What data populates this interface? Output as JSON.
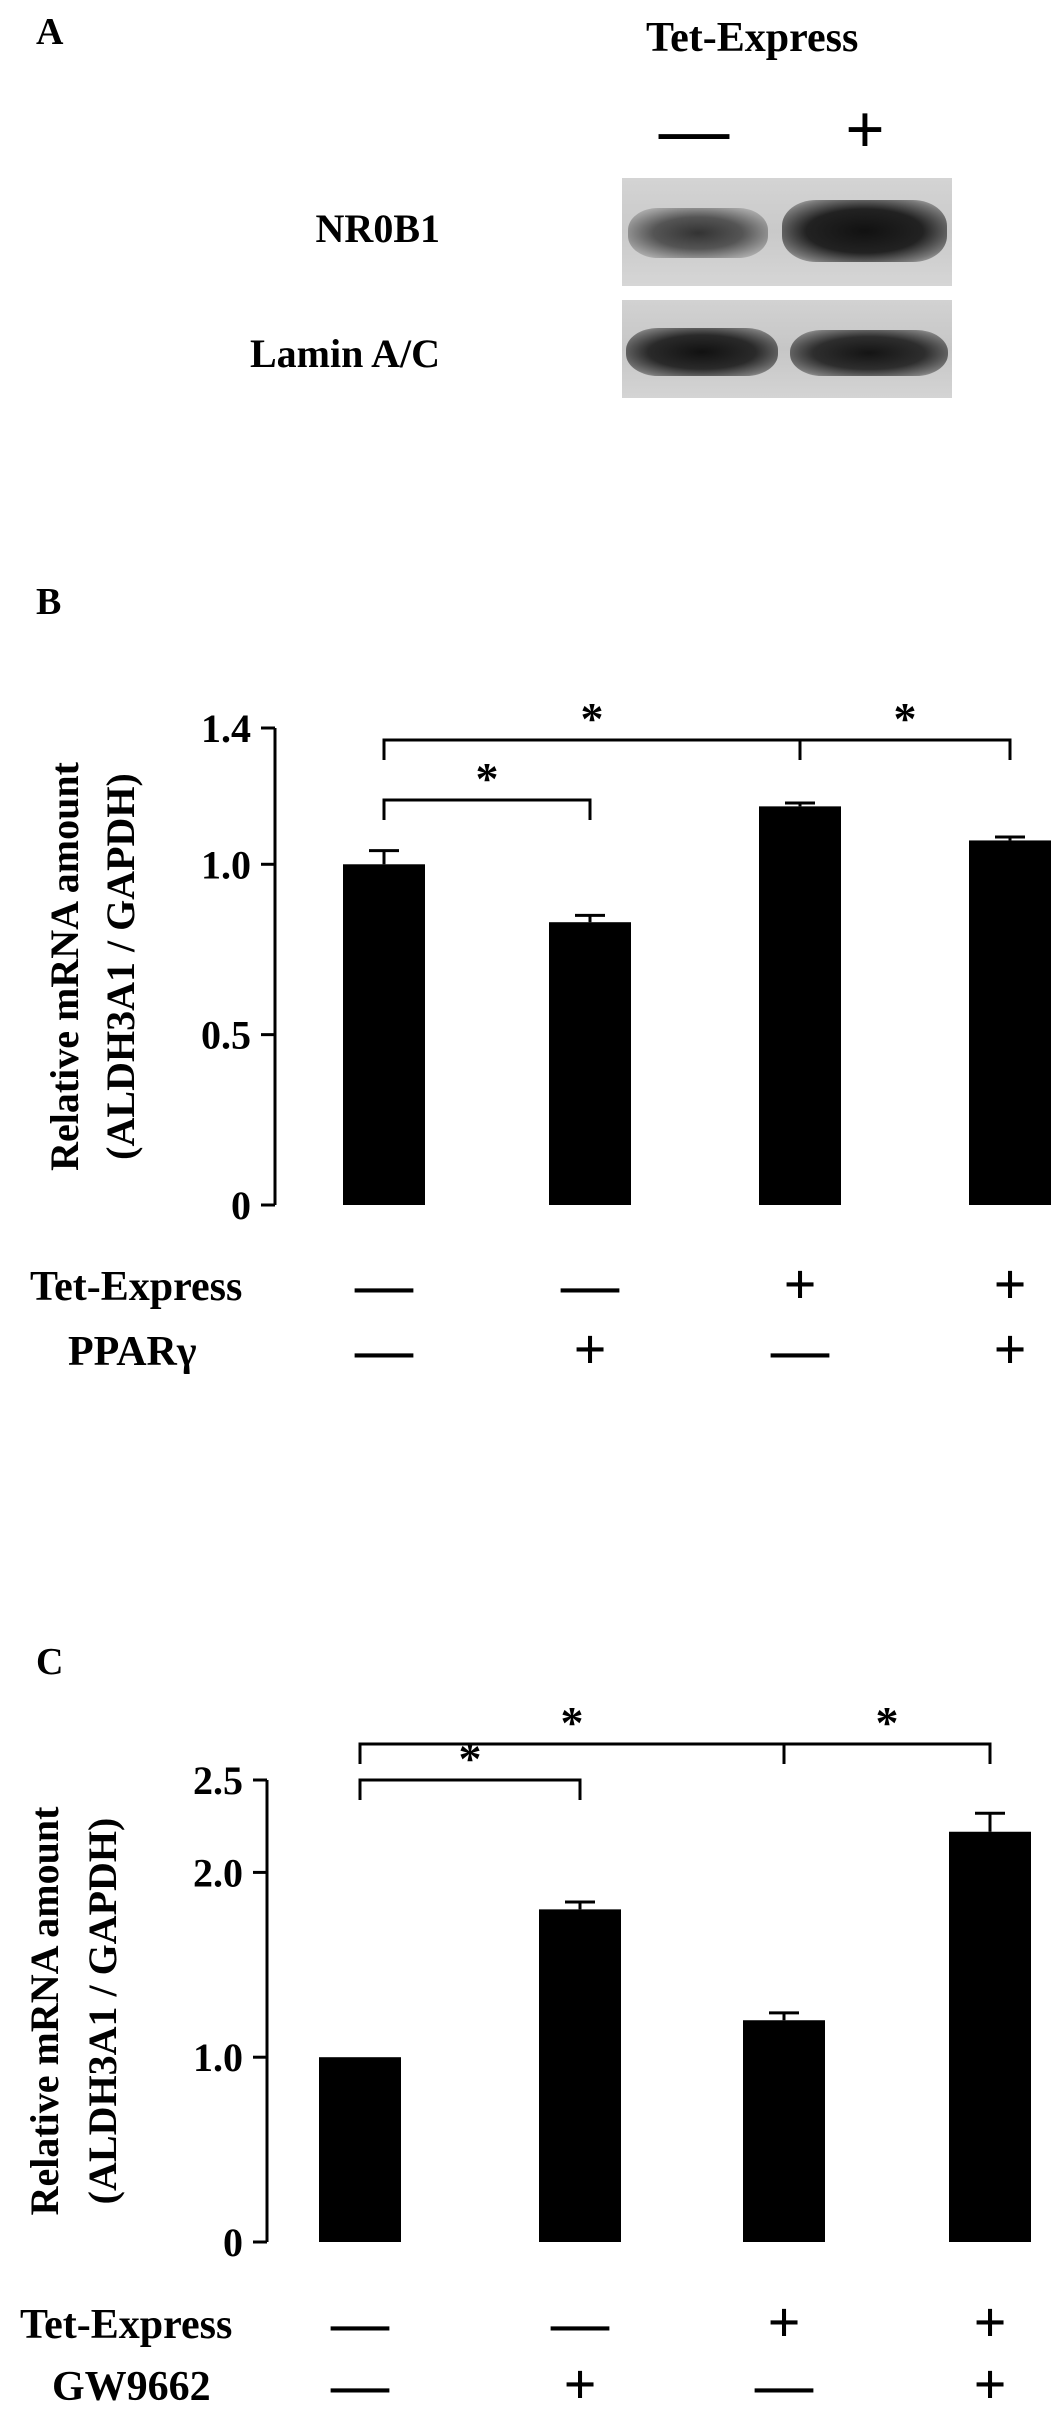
{
  "panel_a": {
    "letter": "A",
    "treatment_label": "Tet-Express",
    "lane_signs": [
      "—",
      "+"
    ],
    "rows": [
      {
        "label": "NR0B1",
        "band_intensity": [
          0.55,
          0.95
        ]
      },
      {
        "label": "Lamin A/C",
        "band_intensity": [
          0.9,
          0.88
        ]
      }
    ]
  },
  "panel_b": {
    "letter": "B",
    "chart_data": {
      "type": "bar",
      "ylabel_line1": "Relative mRNA amount",
      "ylabel_line2": "(ALDH3A1 / GAPDH)",
      "ylim": [
        0,
        1.4
      ],
      "yticks": [
        0,
        0.5,
        1.0,
        1.4
      ],
      "ytick_labels": [
        "0",
        "0.5",
        "1.0",
        "1.4"
      ],
      "values": [
        1.0,
        0.83,
        1.17,
        1.07
      ],
      "errors": [
        0.04,
        0.02,
        0.01,
        0.01
      ],
      "conditions": [
        {
          "name": "Tet-Express",
          "signs": [
            "—",
            "—",
            "+",
            "+"
          ]
        },
        {
          "name": "PPARγ",
          "signs": [
            "—",
            "+",
            "—",
            "+"
          ]
        }
      ],
      "significance": [
        {
          "from": 0,
          "to": 1,
          "label": "*"
        },
        {
          "from": 0,
          "to": 2,
          "label": "*"
        },
        {
          "from": 2,
          "to": 3,
          "label": "*"
        }
      ]
    }
  },
  "panel_c": {
    "letter": "C",
    "chart_data": {
      "type": "bar",
      "ylabel_line1": "Relative mRNA amount",
      "ylabel_line2": "(ALDH3A1 / GAPDH)",
      "ylim": [
        0,
        2.5
      ],
      "yticks": [
        0,
        1.0,
        2.0,
        2.5
      ],
      "ytick_labels": [
        "0",
        "1.0",
        "2.0",
        "2.5"
      ],
      "values": [
        1.0,
        1.8,
        1.2,
        2.22
      ],
      "errors": [
        0.0,
        0.04,
        0.04,
        0.1
      ],
      "conditions": [
        {
          "name": "Tet-Express",
          "signs": [
            "—",
            "—",
            "+",
            "+"
          ]
        },
        {
          "name": "GW9662",
          "signs": [
            "—",
            "+",
            "—",
            "+"
          ]
        }
      ],
      "significance": [
        {
          "from": 0,
          "to": 1,
          "label": "*"
        },
        {
          "from": 0,
          "to": 2,
          "label": "*"
        },
        {
          "from": 2,
          "to": 3,
          "label": "*"
        }
      ]
    }
  }
}
